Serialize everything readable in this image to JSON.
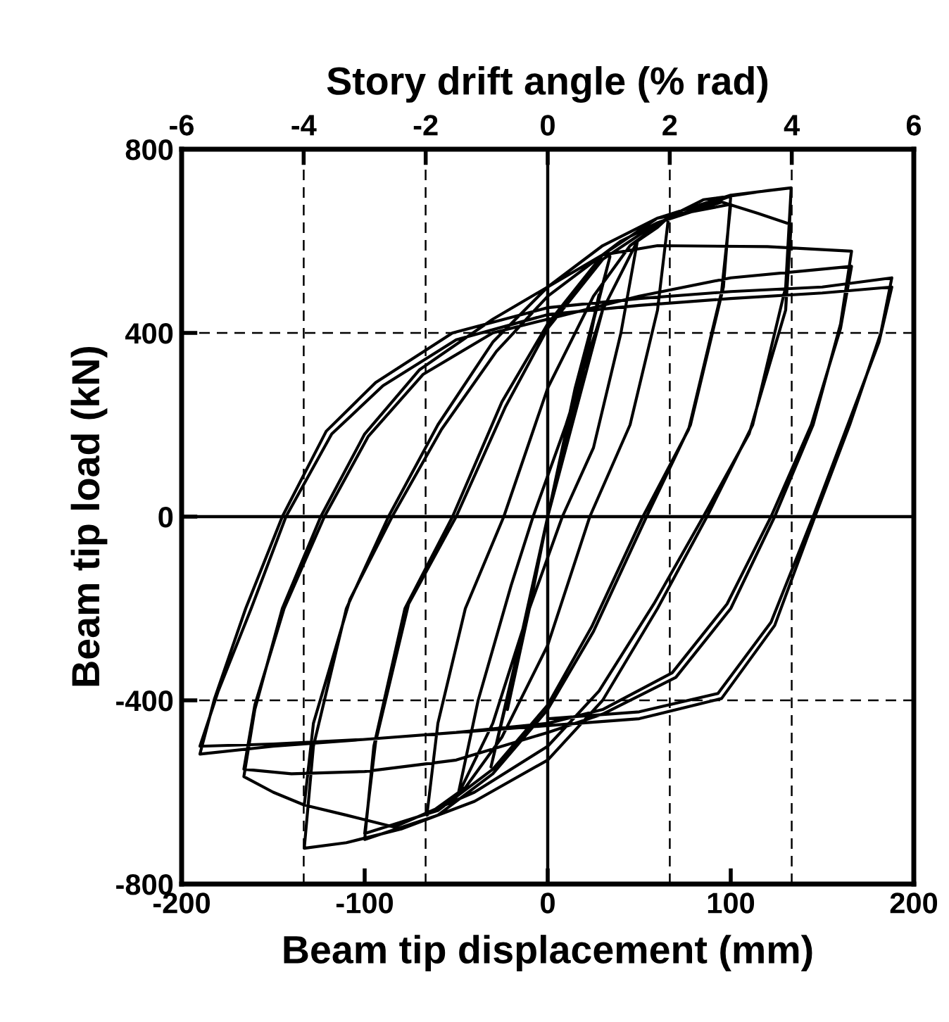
{
  "chart_data": {
    "type": "line",
    "xlabel": "Beam tip displacement (mm)",
    "ylabel": "Beam tip load (kN)",
    "x2label": "Story drift angle (% rad)",
    "xlim": [
      -200,
      200
    ],
    "xticks": [
      -200,
      -100,
      0,
      100,
      200
    ],
    "ylim": [
      -800,
      800
    ],
    "yticks": [
      -800,
      -400,
      0,
      400,
      800
    ],
    "x2lim": [
      -6,
      6
    ],
    "x2ticks": [
      -6,
      -4,
      -2,
      0,
      2,
      4,
      6
    ],
    "marker": "none",
    "line_style": "solid",
    "grid": false,
    "legend": false,
    "ref_lines": [
      {
        "axis": "x",
        "value": 0,
        "color": "#000000",
        "line_style": "solid"
      },
      {
        "axis": "y",
        "value": 0,
        "color": "#000000",
        "line_style": "solid"
      },
      {
        "axis": "y",
        "value": 400,
        "color": "#000000",
        "line_style": "dashed"
      },
      {
        "axis": "y",
        "value": -400,
        "color": "#000000",
        "line_style": "dashed"
      },
      {
        "axis": "x",
        "value": -133.3,
        "color": "#000000",
        "line_style": "dashed"
      },
      {
        "axis": "x",
        "value": -66.7,
        "color": "#000000",
        "line_style": "dashed"
      },
      {
        "axis": "x",
        "value": 66.7,
        "color": "#000000",
        "line_style": "dashed"
      },
      {
        "axis": "x",
        "value": 133.3,
        "color": "#000000",
        "line_style": "dashed"
      }
    ],
    "series": [
      {
        "color": "#000000",
        "x": [
          0,
          15,
          28,
          15,
          0,
          -10,
          -22,
          -10,
          0,
          15,
          34,
          15,
          0,
          -15,
          -31,
          -15,
          0,
          30,
          49,
          40,
          25,
          8,
          -10,
          -30,
          -49,
          -38,
          -20,
          -8,
          10,
          30,
          49,
          60,
          66,
          60,
          45,
          23,
          0,
          -25,
          -45,
          -66,
          -60,
          -45,
          -24,
          0,
          25,
          45,
          66,
          85,
          100,
          96,
          78,
          54,
          25,
          0,
          -30,
          -60,
          -100,
          -95,
          -78,
          -52,
          -25,
          0,
          30,
          60,
          100,
          95,
          77,
          52,
          24,
          0,
          -30,
          -60,
          -100,
          -94,
          -76,
          -50,
          -23,
          0,
          30,
          60,
          100,
          120,
          133,
          130,
          112,
          87,
          60,
          30,
          0,
          -40,
          -80,
          -110,
          -133,
          -128,
          -110,
          -87,
          -60,
          -30,
          0,
          30,
          60,
          100,
          133,
          130,
          110,
          85,
          58,
          28,
          0,
          -40,
          -84,
          -110,
          -133,
          -128,
          -108,
          -85,
          -58,
          -28,
          0,
          40,
          60,
          95,
          115,
          133,
          130,
          110,
          85,
          58,
          28,
          0,
          -40,
          -84,
          -110,
          -133,
          -150,
          -166,
          -160,
          -145,
          -124,
          -100,
          -70,
          -30,
          0,
          30,
          60,
          120,
          166,
          160,
          145,
          124,
          100,
          70,
          30,
          0,
          -50,
          -100,
          -140,
          -166,
          -160,
          -144,
          -122,
          -98,
          -68,
          -30,
          0,
          50,
          100,
          140,
          166,
          160,
          144,
          122,
          98,
          68,
          30,
          0,
          -50,
          -100,
          -150,
          -190,
          -182,
          -165,
          -145,
          -121,
          -94,
          -52,
          0,
          50,
          100,
          150,
          188,
          182,
          165,
          146,
          124,
          95,
          50,
          0,
          -50,
          -100,
          -150,
          -190,
          -180,
          -162,
          -143,
          -118,
          -90,
          -50,
          0,
          50,
          100,
          150,
          188,
          181,
          163,
          145,
          122,
          93,
          50,
          0
        ],
        "values": [
          0,
          250,
          483,
          230,
          0,
          -200,
          -420,
          -190,
          0,
          270,
          566,
          280,
          0,
          -270,
          -545,
          -280,
          0,
          450,
          600,
          400,
          150,
          0,
          -200,
          -450,
          -606,
          -400,
          -150,
          0,
          200,
          450,
          600,
          630,
          652,
          450,
          200,
          0,
          -280,
          -480,
          -590,
          -650,
          -450,
          -200,
          0,
          280,
          480,
          590,
          652,
          690,
          698,
          500,
          200,
          0,
          -250,
          -420,
          -560,
          -650,
          -703,
          -500,
          -200,
          0,
          250,
          420,
          570,
          650,
          680,
          490,
          190,
          0,
          -240,
          -410,
          -550,
          -640,
          -690,
          -490,
          -190,
          0,
          240,
          410,
          560,
          640,
          698,
          710,
          716,
          500,
          200,
          0,
          -200,
          -400,
          -530,
          -620,
          -680,
          -710,
          -722,
          -500,
          -200,
          0,
          200,
          380,
          500,
          590,
          650,
          700,
          716,
          450,
          180,
          0,
          -190,
          -380,
          -500,
          -600,
          -676,
          -650,
          -628,
          -450,
          -180,
          0,
          190,
          360,
          480,
          600,
          640,
          685,
          660,
          636,
          450,
          180,
          0,
          -190,
          -380,
          -500,
          -600,
          -676,
          -650,
          -628,
          -600,
          -566,
          -420,
          -200,
          0,
          180,
          320,
          430,
          500,
          570,
          590,
          588,
          578,
          420,
          200,
          0,
          -200,
          -350,
          -430,
          -470,
          -530,
          -555,
          -560,
          -550,
          -410,
          -200,
          0,
          175,
          310,
          400,
          430,
          480,
          520,
          535,
          545,
          410,
          200,
          0,
          -190,
          -340,
          -420,
          -450,
          -470,
          -485,
          -500,
          -517,
          -396,
          -200,
          0,
          186,
          292,
          400,
          455,
          475,
          490,
          500,
          520,
          400,
          200,
          0,
          -237,
          -396,
          -440,
          -455,
          -470,
          -485,
          -495,
          -500,
          -380,
          -200,
          0,
          180,
          285,
          385,
          440,
          460,
          475,
          487,
          500,
          380,
          190,
          0,
          -230,
          -385,
          -425,
          -440
        ]
      }
    ]
  }
}
